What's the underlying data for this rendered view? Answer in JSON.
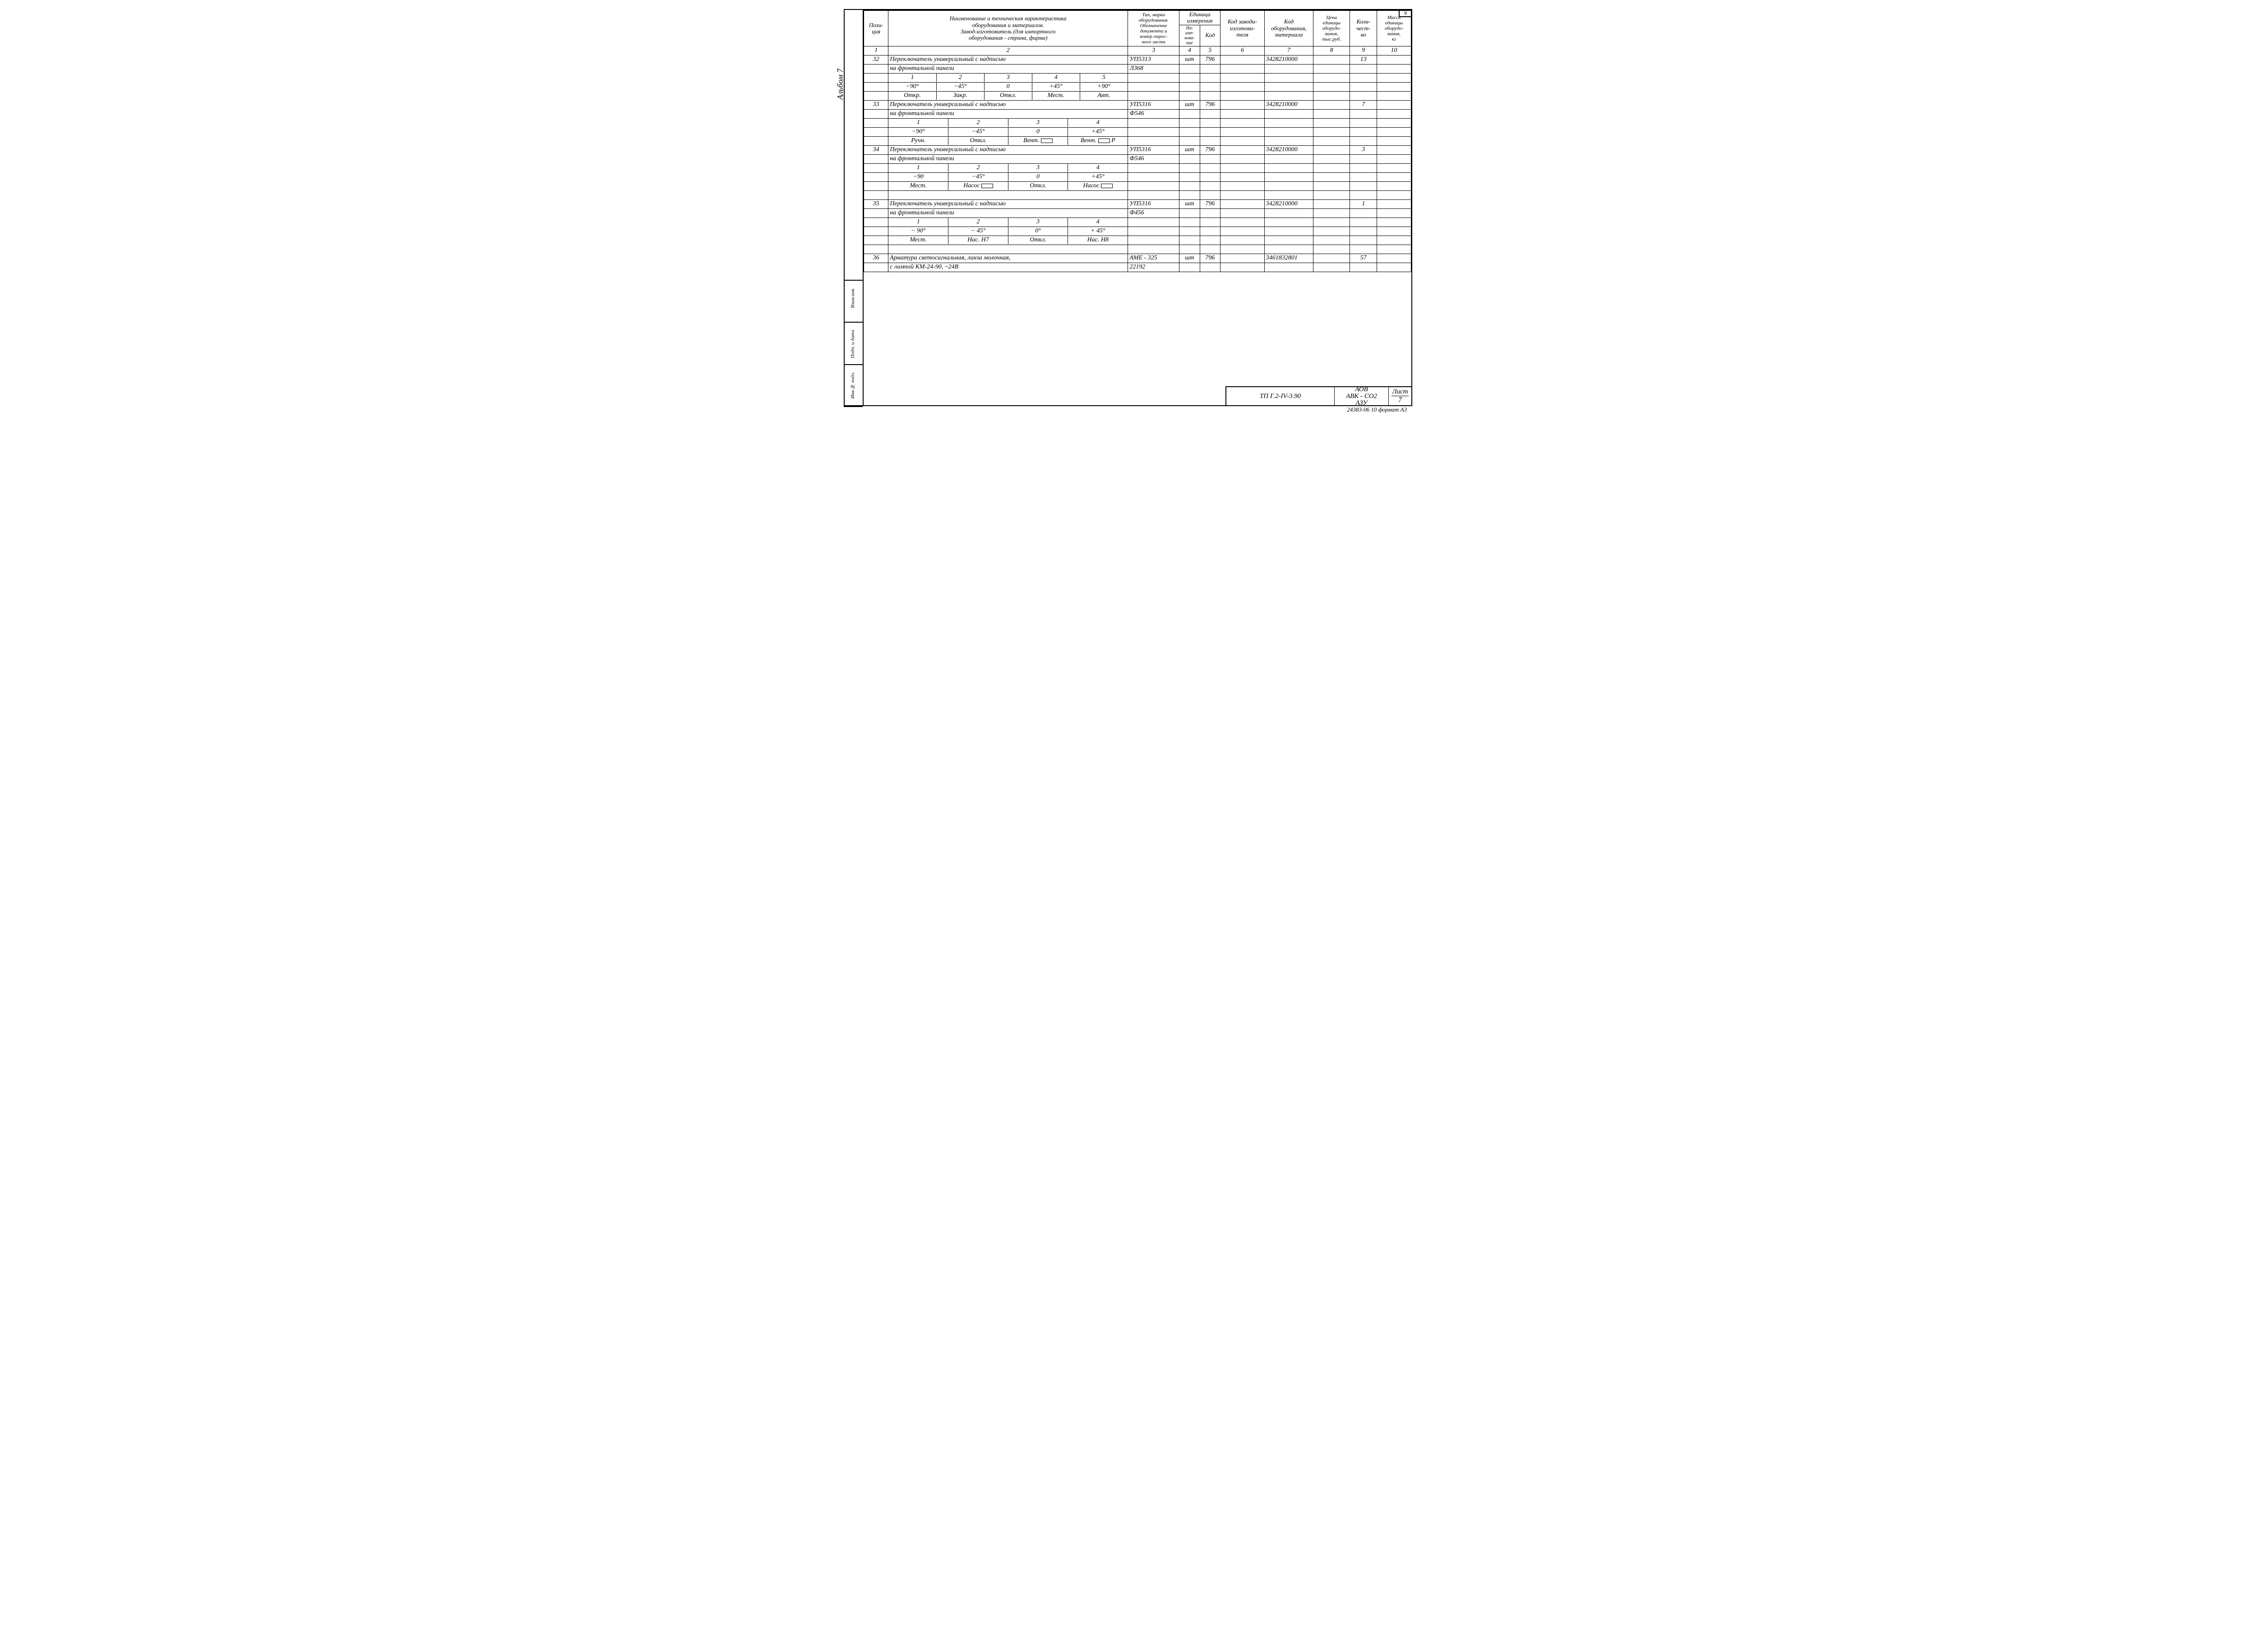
{
  "page_top": "9",
  "side": {
    "album": "Альбом 7",
    "boxes": [
      "Взам.инв.",
      "Подп. и дата",
      "Инв.№ подл."
    ]
  },
  "headers": {
    "c1": "Пози-\nция",
    "c2": "Наименование и техническая характеристика\nоборудования и материалов.\nЗавод-изготовитель (для импортного\nоборудования - страна, фирма)",
    "c3": "Тип, марка\nоборудования.\nОбозначение\nдокумента и\nномер опрос-\nного листа",
    "c45_top": "Единица\nизмерения",
    "c4": "На-\nиме-\nнова-\nние",
    "c5": "Код",
    "c6": "Код завода-\nизготови-\nтеля",
    "c7": "Код\nоборудования,\nматериала",
    "c8": "Цена\nединицы\nоборудо-\nвания,\nтыс.руб.",
    "c9": "Коли-\nчест-\nво",
    "c10": "Масса\nединицы\nоборудо-\nвания,\nкг"
  },
  "colnums": [
    "1",
    "2",
    "3",
    "4",
    "5",
    "6",
    "7",
    "8",
    "9",
    "10"
  ],
  "rows": [
    {
      "pos": "32",
      "desc": "Переключатель универсальный с надписью",
      "c3": "УП5313",
      "c4": "шт",
      "c5": "796",
      "c6": "",
      "c7": "3428210000",
      "c8": "",
      "c9": "13",
      "c10": ""
    },
    {
      "pos": "",
      "desc": "на фронтальной панели",
      "c3": "Л368",
      "c4": "",
      "c5": "",
      "c6": "",
      "c7": "",
      "c8": "",
      "c9": "",
      "c10": ""
    },
    {
      "pos": "",
      "sub5": [
        "1",
        "2",
        "3",
        "4",
        "5"
      ],
      "blank": true
    },
    {
      "pos": "",
      "sub5": [
        "−90°",
        "−45°",
        "0",
        "+45°",
        "+90°"
      ],
      "blank": true
    },
    {
      "pos": "",
      "sub5": [
        "Откр.",
        "Закр.",
        "Откл.",
        "Мест.",
        "Авт."
      ],
      "blank": true
    },
    {
      "pos": "33",
      "desc": "Переключатель универсальный с надписью",
      "c3": "УП5316",
      "c4": "шт",
      "c5": "796",
      "c6": "",
      "c7": "3428210000",
      "c8": "",
      "c9": "7",
      "c10": ""
    },
    {
      "pos": "",
      "desc": "на фронтальной панели",
      "c3": "Ф546",
      "c4": "",
      "c5": "",
      "c6": "",
      "c7": "",
      "c8": "",
      "c9": "",
      "c10": ""
    },
    {
      "pos": "",
      "sub4": [
        "1",
        "2",
        "3",
        "4"
      ],
      "blank": true
    },
    {
      "pos": "",
      "sub4": [
        "−90°",
        "−45°",
        "0",
        "+45°"
      ],
      "blank": true
    },
    {
      "pos": "",
      "sub4r": [
        "Ручн.",
        "Откл.",
        "Вент. ▭",
        "Вент. ▭ Р"
      ],
      "blank": true
    },
    {
      "pos": "34",
      "desc": "Переключатель универсальный с надписью",
      "c3": "УП5316",
      "c4": "шт",
      "c5": "796",
      "c6": "",
      "c7": "3428210000",
      "c8": "",
      "c9": "3",
      "c10": ""
    },
    {
      "pos": "",
      "desc": "на фронтальной панели",
      "c3": "Ф546",
      "c4": "",
      "c5": "",
      "c6": "",
      "c7": "",
      "c8": "",
      "c9": "",
      "c10": ""
    },
    {
      "pos": "",
      "sub4": [
        "1",
        "2",
        "3",
        "4"
      ],
      "blank": true
    },
    {
      "pos": "",
      "sub4": [
        "−90",
        "−45°",
        "0",
        "+45°"
      ],
      "blank": true
    },
    {
      "pos": "",
      "sub4r": [
        "Мест.",
        "Насос ▭",
        "Откл.",
        "Насос ▭"
      ],
      "blank": true
    },
    {
      "pos": "",
      "desc": "",
      "blank": true,
      "thin": true
    },
    {
      "pos": "35",
      "desc": "Переключатель универсальный с надписью",
      "c3": "УП5316",
      "c4": "шт",
      "c5": "796",
      "c6": "",
      "c7": "3428210000",
      "c8": "",
      "c9": "1",
      "c10": ""
    },
    {
      "pos": "",
      "desc": "на фронтальной панели",
      "c3": "Ф456",
      "c4": "",
      "c5": "",
      "c6": "",
      "c7": "",
      "c8": "",
      "c9": "",
      "c10": ""
    },
    {
      "pos": "",
      "sub4": [
        "1",
        "2",
        "3",
        "4"
      ],
      "blank": true
    },
    {
      "pos": "",
      "sub4": [
        "− 90°",
        "− 45°",
        "0°",
        "+ 45°"
      ],
      "blank": true
    },
    {
      "pos": "",
      "sub4": [
        "Мест.",
        "Нас. Н7",
        "Откл.",
        "Нас. Н8"
      ],
      "blank": true
    },
    {
      "pos": "",
      "desc": "",
      "blank": true,
      "thin": true
    },
    {
      "pos": "36",
      "desc": "Арматура светосигнальная, линза молочная,",
      "c3": "АМЕ - 325",
      "c4": "шт",
      "c5": "796",
      "c6": "",
      "c7": "3461832801",
      "c8": "",
      "c9": "57",
      "c10": ""
    },
    {
      "pos": "",
      "desc": "с лампой КМ-24-90, ~24В",
      "c3": "22192",
      "c4": "",
      "c5": "",
      "c6": "",
      "c7": "",
      "c8": "",
      "c9": "",
      "c10": ""
    }
  ],
  "title_block": {
    "code": "ТП Г.2-IV-3.90",
    "right_lines": [
      "АОВ",
      "АВК - СО2",
      "АЗУ"
    ],
    "sheet_label": "Лист",
    "sheet_num": "7"
  },
  "footer": "24383-06 10    формат А3",
  "widths": {
    "c1": 50,
    "c2": 490,
    "c3": 105,
    "c4": 42,
    "c5": 42,
    "c6": 90,
    "c7": 100,
    "c8": 75,
    "c9": 55,
    "c10": 70
  },
  "colors": {
    "ink": "#000000",
    "paper": "#ffffff"
  }
}
